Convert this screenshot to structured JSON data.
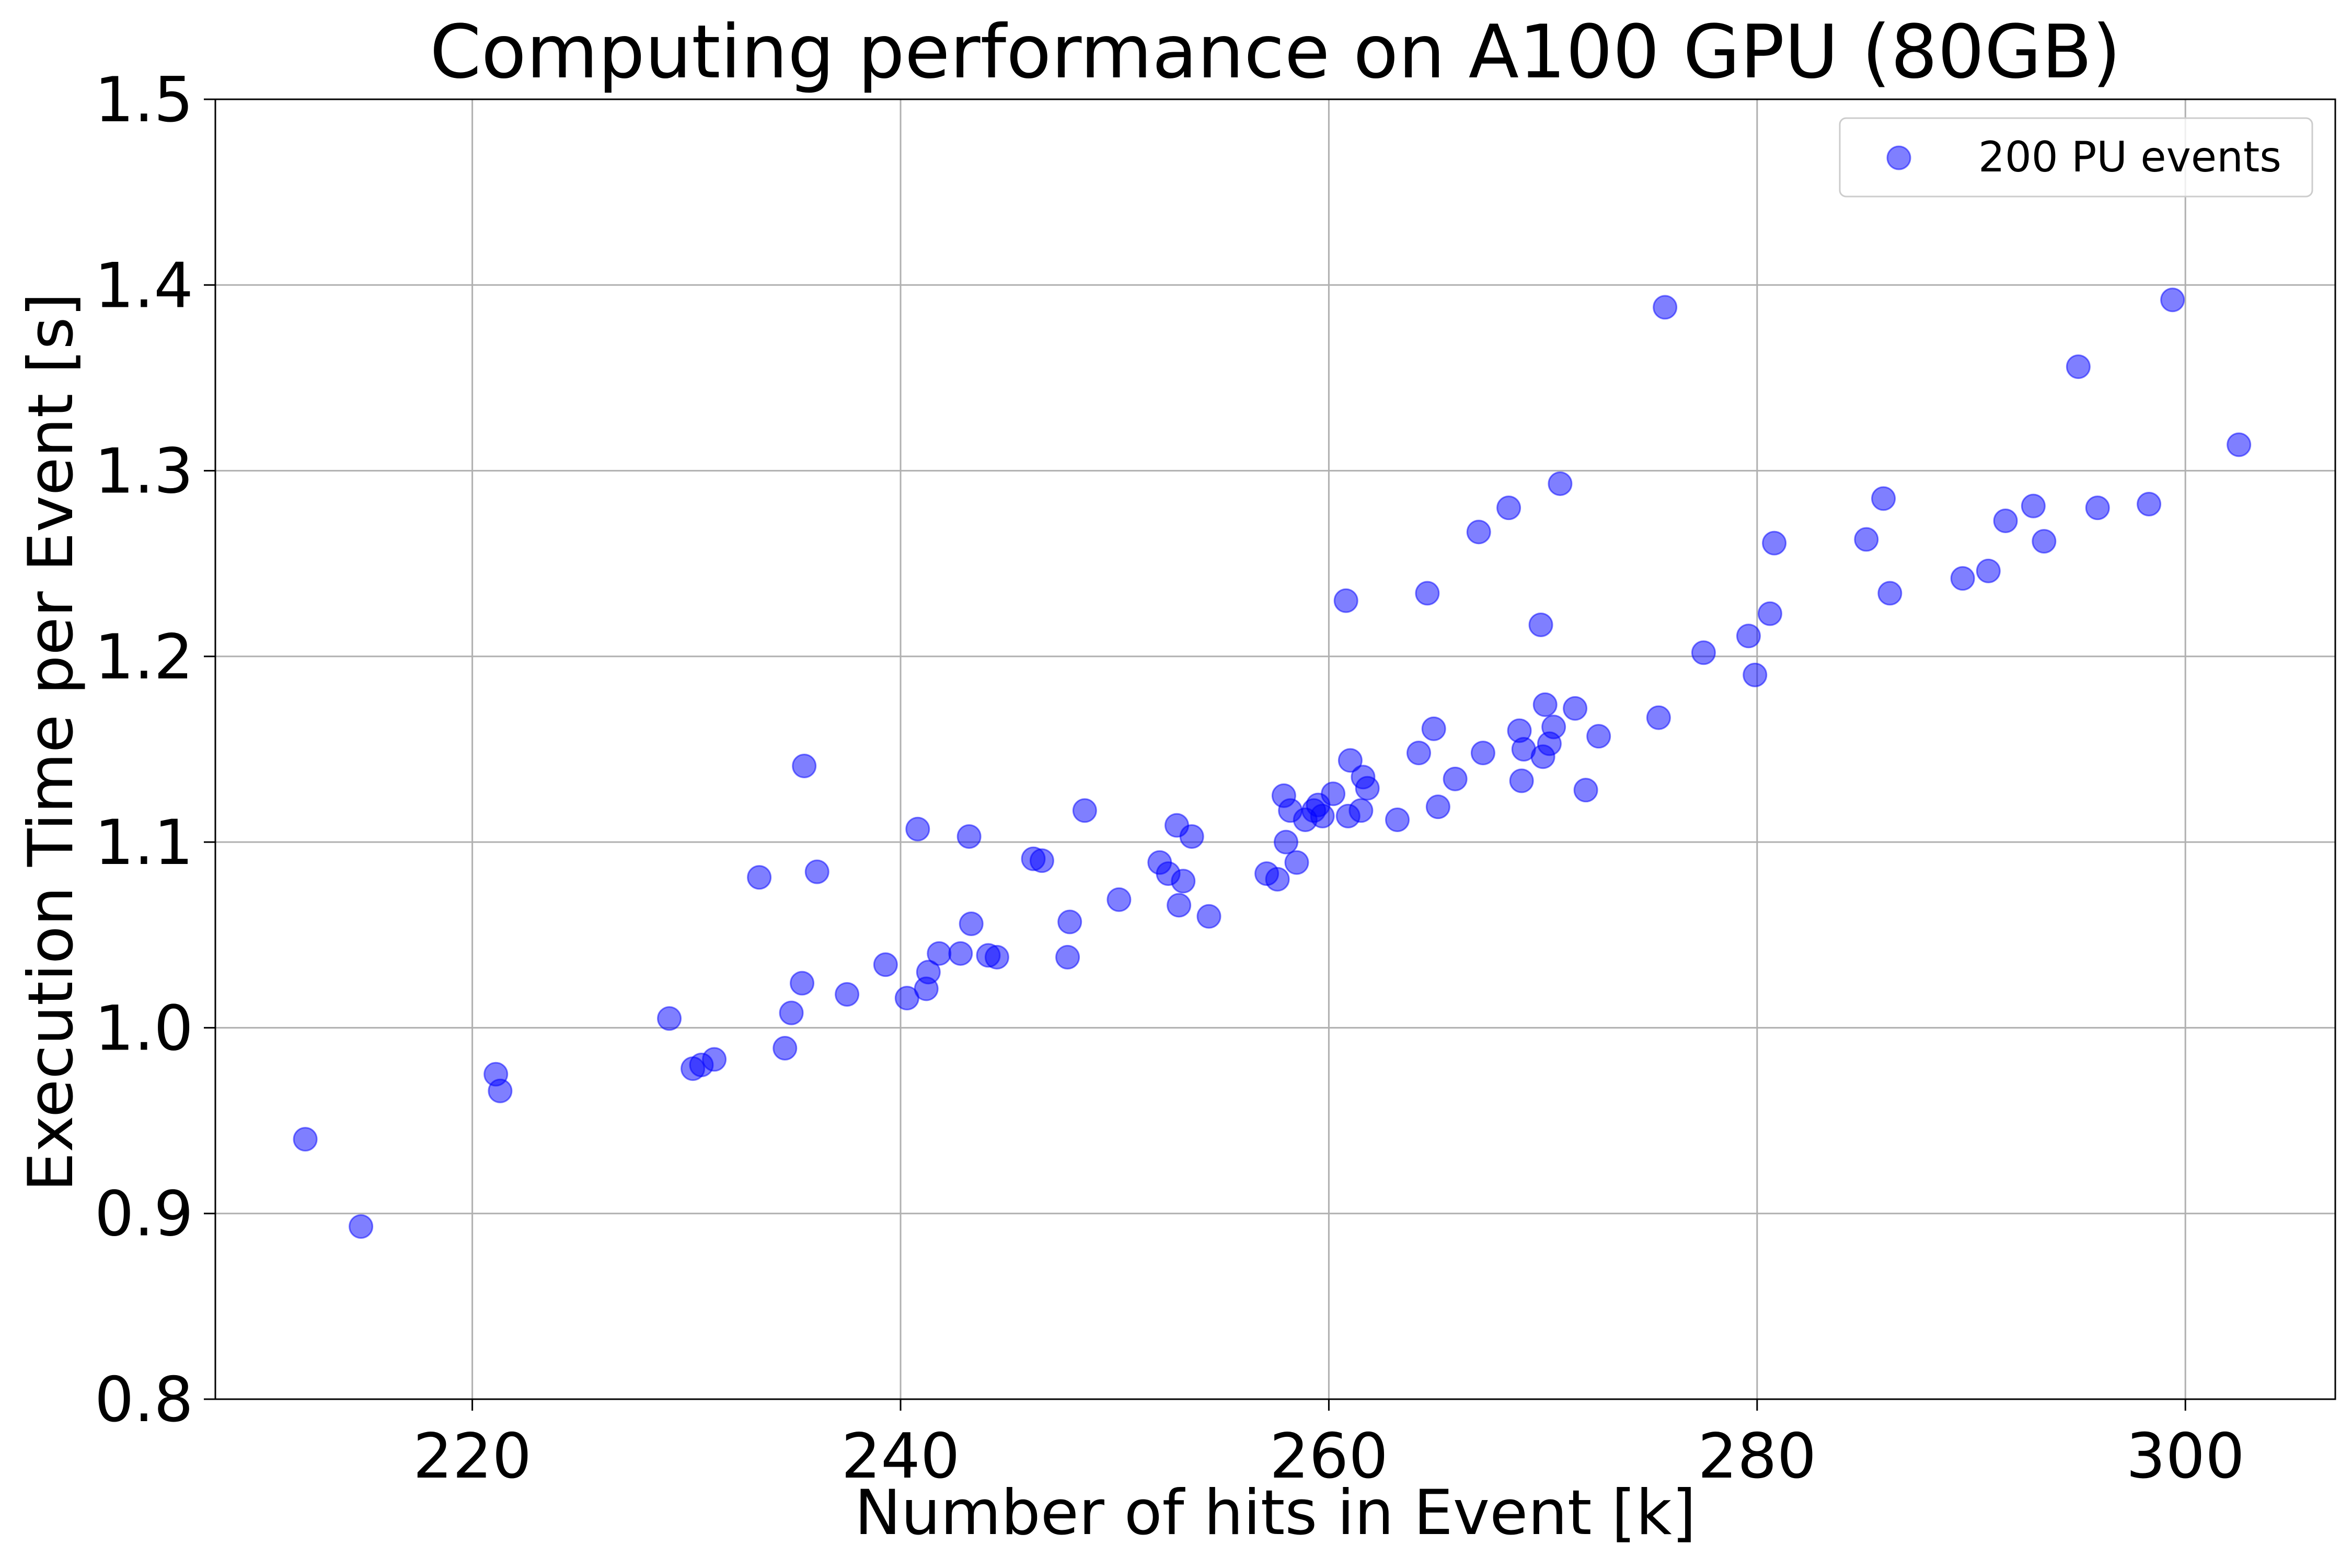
{
  "chart_data": {
    "type": "scatter",
    "title": "Computing performance on A100 GPU (80GB)",
    "xlabel": "Number of hits in Event [k]",
    "ylabel": "Execution Time per Event [s]",
    "xlim": [
      208,
      307
    ],
    "ylim": [
      0.8,
      1.5
    ],
    "xticks": [
      220,
      240,
      260,
      280,
      300
    ],
    "yticks": [
      0.8,
      0.9,
      1.0,
      1.1,
      1.2,
      1.3,
      1.4,
      1.5
    ],
    "grid": true,
    "legend_position": "top-right",
    "series": [
      {
        "name": "200 PU events",
        "color": "#0000ff",
        "opacity": 0.5,
        "x": [
          212.2,
          214.8,
          221.1,
          221.3,
          229.2,
          230.3,
          230.7,
          231.3,
          233.4,
          234.6,
          234.9,
          235.4,
          235.5,
          236.1,
          237.5,
          239.3,
          240.3,
          240.8,
          241.2,
          241.3,
          241.8,
          242.8,
          243.2,
          243.3,
          244.1,
          244.5,
          246.2,
          246.6,
          247.8,
          247.9,
          248.6,
          250.2,
          252.1,
          252.5,
          252.9,
          253.0,
          253.2,
          253.6,
          254.4,
          257.1,
          257.6,
          257.9,
          258.0,
          258.2,
          258.5,
          258.9,
          259.3,
          259.5,
          259.7,
          260.2,
          260.8,
          260.9,
          261.0,
          261.5,
          261.6,
          261.8,
          263.2,
          264.2,
          264.6,
          264.9,
          265.1,
          265.9,
          267.0,
          267.2,
          268.4,
          268.9,
          269.0,
          269.1,
          269.9,
          270.0,
          270.1,
          270.3,
          270.5,
          270.8,
          271.5,
          272.0,
          272.6,
          275.4,
          275.7,
          277.5,
          279.6,
          279.9,
          280.6,
          280.8,
          285.1,
          285.9,
          286.2,
          289.6,
          290.8,
          291.6,
          292.9,
          293.4,
          295.0,
          295.9,
          298.3,
          299.4,
          302.5
        ],
        "y": [
          0.94,
          0.893,
          0.975,
          0.966,
          1.005,
          0.978,
          0.98,
          0.983,
          1.081,
          0.989,
          1.008,
          1.024,
          1.141,
          1.084,
          1.018,
          1.034,
          1.016,
          1.107,
          1.021,
          1.03,
          1.04,
          1.04,
          1.103,
          1.056,
          1.039,
          1.038,
          1.091,
          1.09,
          1.038,
          1.057,
          1.117,
          1.069,
          1.089,
          1.083,
          1.109,
          1.066,
          1.079,
          1.103,
          1.06,
          1.083,
          1.08,
          1.125,
          1.1,
          1.117,
          1.089,
          1.112,
          1.117,
          1.12,
          1.114,
          1.126,
          1.23,
          1.114,
          1.144,
          1.117,
          1.135,
          1.129,
          1.112,
          1.148,
          1.234,
          1.161,
          1.119,
          1.134,
          1.267,
          1.148,
          1.28,
          1.16,
          1.133,
          1.15,
          1.217,
          1.146,
          1.174,
          1.153,
          1.162,
          1.293,
          1.172,
          1.128,
          1.157,
          1.167,
          1.388,
          1.202,
          1.211,
          1.19,
          1.223,
          1.261,
          1.263,
          1.285,
          1.234,
          1.242,
          1.246,
          1.273,
          1.281,
          1.262,
          1.356,
          1.28,
          1.282,
          1.392,
          1.314
        ]
      }
    ]
  }
}
